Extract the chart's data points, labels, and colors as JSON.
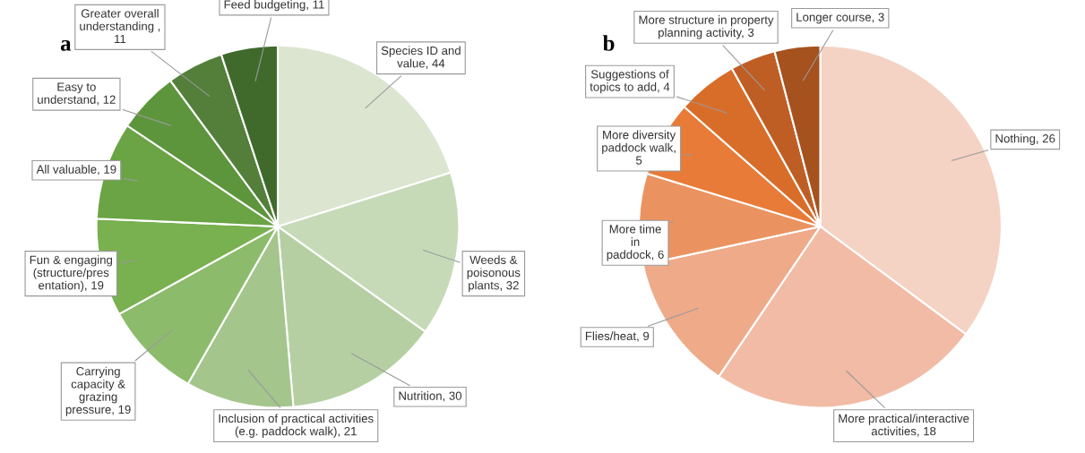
{
  "chart_data": [
    {
      "type": "pie",
      "title": "a",
      "categories": [
        "Species ID and\nvalue",
        "Weeds &\npoisonous\nplants",
        "Nutrition",
        "Inclusion of practical activities\n(e.g. paddock walk)",
        "Carrying\ncapacity &\ngrazing\npressure",
        "Fun & engaging\n(structure/pres\nentation)",
        "All valuable",
        "Easy to\nunderstand",
        "Greater overall\nunderstanding",
        "Feed budgeting"
      ],
      "values": [
        44,
        32,
        30,
        21,
        19,
        19,
        19,
        12,
        11,
        11
      ],
      "value_labels": [
        ", 44",
        ", 32",
        ", 30",
        ", 21",
        ", 19",
        ", 19",
        ", 19",
        ", 12",
        " ,\n11",
        ", 11"
      ],
      "colors": [
        "#dbe5d0",
        "#c6dab8",
        "#b5cfa2",
        "#a4c58c",
        "#8cbb6c",
        "#79b050",
        "#6aa444",
        "#5d953c",
        "#537f3a",
        "#3f6a2c"
      ]
    },
    {
      "type": "pie",
      "title": "b",
      "categories": [
        "Nothing",
        "More practical/interactive\nactivities",
        "Flies/heat",
        "More time\nin\npaddock",
        "More diversity\npaddock walk",
        "Suggestions of\ntopics to add",
        "More structure in property\nplanning activity",
        "Longer course"
      ],
      "values": [
        26,
        18,
        9,
        6,
        5,
        4,
        3,
        3
      ],
      "value_labels": [
        ", 26",
        ", 18",
        ", 9",
        ", 6",
        ",\n5",
        ", 4",
        ", 3",
        ", 3"
      ],
      "colors": [
        "#f4d2c4",
        "#f2bba5",
        "#eeaa89",
        "#eb9360",
        "#e87b38",
        "#d86d2a",
        "#bf5e24",
        "#a5521f"
      ]
    }
  ]
}
